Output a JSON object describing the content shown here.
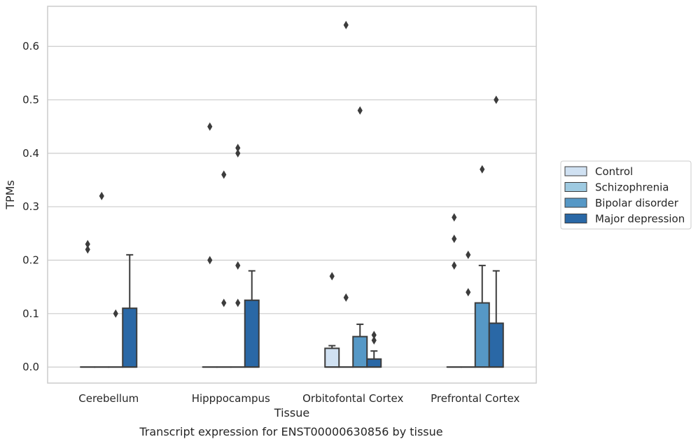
{
  "chart_data": {
    "type": "box",
    "xlabel": "Tissue",
    "ylabel": "TPMs",
    "ylim": [
      -0.03,
      0.675
    ],
    "yticks": [
      0.0,
      0.1,
      0.2,
      0.3,
      0.4,
      0.5,
      0.6
    ],
    "ytick_labels": [
      "0.0",
      "0.1",
      "0.2",
      "0.3",
      "0.4",
      "0.5",
      "0.6"
    ],
    "grid": "horizontal",
    "legend_position": "right",
    "categories": [
      "Cerebellum",
      "Hipppocampus",
      "Orbitofontal Cortex",
      "Prefrontal Cortex"
    ],
    "series": [
      {
        "name": "Control",
        "color": "#d0e1f2",
        "boxes": [
          {
            "q1": 0,
            "median": 0,
            "q3": 0,
            "whisker_low": 0,
            "whisker_high": 0,
            "outliers": [
              0.23,
              0.22
            ]
          },
          {
            "q1": 0,
            "median": 0,
            "q3": 0,
            "whisker_low": 0,
            "whisker_high": 0,
            "outliers": [
              0.45,
              0.2
            ]
          },
          {
            "q1": 0,
            "median": 0,
            "q3": 0.035,
            "whisker_low": 0,
            "whisker_high": 0.04,
            "outliers": [
              0.17
            ]
          },
          {
            "q1": 0,
            "median": 0,
            "q3": 0,
            "whisker_low": 0,
            "whisker_high": 0,
            "outliers": [
              0.28,
              0.24,
              0.19
            ]
          }
        ]
      },
      {
        "name": "Schizophrenia",
        "color": "#9ecae1",
        "boxes": [
          {
            "q1": 0,
            "median": 0,
            "q3": 0,
            "whisker_low": 0,
            "whisker_high": 0,
            "outliers": [
              0.32
            ]
          },
          {
            "q1": 0,
            "median": 0,
            "q3": 0,
            "whisker_low": 0,
            "whisker_high": 0,
            "outliers": [
              0.36,
              0.12
            ]
          },
          {
            "q1": 0,
            "median": 0,
            "q3": 0,
            "whisker_low": 0,
            "whisker_high": 0,
            "outliers": [
              0.64,
              0.13
            ]
          },
          {
            "q1": 0,
            "median": 0,
            "q3": 0,
            "whisker_low": 0,
            "whisker_high": 0,
            "outliers": [
              0.21,
              0.14
            ]
          }
        ]
      },
      {
        "name": "Bipolar disorder",
        "color": "#5698c6",
        "boxes": [
          {
            "q1": 0,
            "median": 0,
            "q3": 0,
            "whisker_low": 0,
            "whisker_high": 0,
            "outliers": [
              0.1
            ]
          },
          {
            "q1": 0,
            "median": 0,
            "q3": 0,
            "whisker_low": 0,
            "whisker_high": 0,
            "outliers": [
              0.41,
              0.4,
              0.19,
              0.12
            ]
          },
          {
            "q1": 0,
            "median": 0,
            "q3": 0.057,
            "whisker_low": 0,
            "whisker_high": 0.08,
            "outliers": [
              0.48
            ]
          },
          {
            "q1": 0,
            "median": 0,
            "q3": 0.12,
            "whisker_low": 0,
            "whisker_high": 0.19,
            "outliers": [
              0.37
            ]
          }
        ]
      },
      {
        "name": "Major depression",
        "color": "#2a68a6",
        "boxes": [
          {
            "q1": 0,
            "median": 0,
            "q3": 0.11,
            "whisker_low": 0,
            "whisker_high": 0.21,
            "outliers": []
          },
          {
            "q1": 0,
            "median": 0,
            "q3": 0.125,
            "whisker_low": 0,
            "whisker_high": 0.18,
            "outliers": []
          },
          {
            "q1": 0,
            "median": 0,
            "q3": 0.015,
            "whisker_low": 0,
            "whisker_high": 0.03,
            "outliers": [
              0.06,
              0.05
            ]
          },
          {
            "q1": 0,
            "median": 0,
            "q3": 0.082,
            "whisker_low": 0,
            "whisker_high": 0.18,
            "outliers": [
              0.5
            ]
          }
        ]
      }
    ],
    "caption": "Transcript expression for ENST00000630856 by tissue"
  }
}
